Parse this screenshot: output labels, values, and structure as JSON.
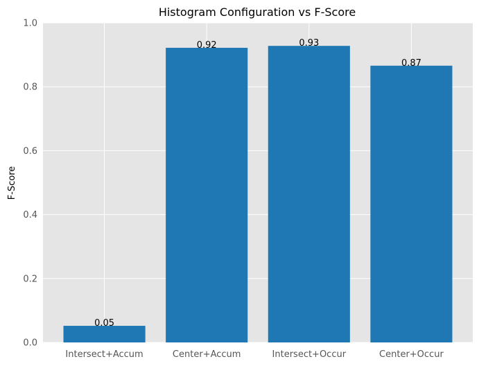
{
  "chart_data": {
    "type": "bar",
    "title": "Histogram Configuration vs F-Score",
    "xlabel": "",
    "ylabel": "F-Score",
    "categories": [
      "Intersect+Accum",
      "Center+Accum",
      "Intersect+Occur",
      "Center+Occur"
    ],
    "values": [
      0.052,
      0.922,
      0.928,
      0.866
    ],
    "data_labels": [
      "0.05",
      "0.92",
      "0.93",
      "0.87"
    ],
    "ylim": [
      0,
      1.0
    ],
    "yticks": [
      "0.0",
      "0.2",
      "0.4",
      "0.6",
      "0.8",
      "1.0"
    ],
    "grid": true,
    "colors": {
      "bar": "#1f77b4",
      "plot_background": "#e5e5e5",
      "grid": "#ffffff"
    }
  }
}
